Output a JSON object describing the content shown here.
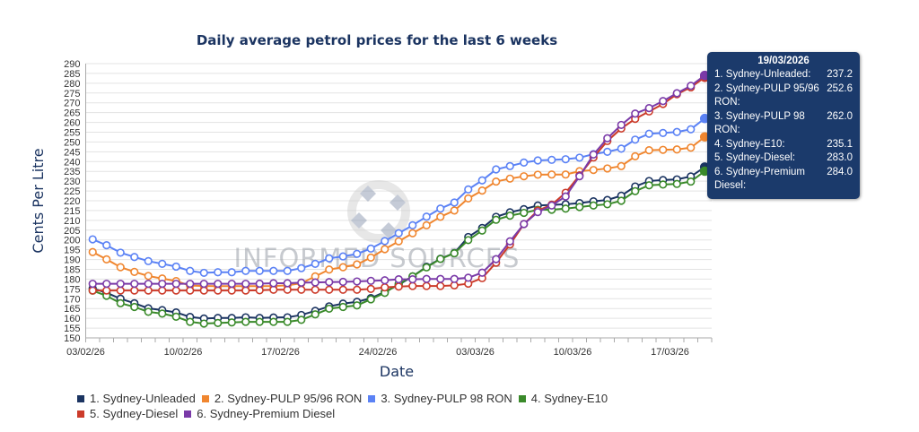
{
  "chart_data": {
    "type": "line",
    "title": "Daily average petrol prices for the last 6 weeks",
    "xlabel": "Date",
    "ylabel": "Cents Per Litre",
    "ylim": [
      150,
      290
    ],
    "ytick_step": 5,
    "x_start": "03/02/26",
    "x_tick_labels": [
      "03/02/26",
      "10/02/26",
      "17/02/26",
      "24/02/26",
      "03/03/26",
      "10/03/26",
      "17/03/26"
    ],
    "grid": true,
    "legend_position": "bottom",
    "series": [
      {
        "name": "1. Sydney-Unleaded",
        "color": "#1b3461",
        "values": [
          175.3,
          173,
          170,
          167.7,
          165.1,
          164.2,
          163,
          160.7,
          159.9,
          160.2,
          160.2,
          160.5,
          160.2,
          160.4,
          160.5,
          161.7,
          163.8,
          166.1,
          167.5,
          168.4,
          170.3,
          173.5,
          177.1,
          181.4,
          186.3,
          190.4,
          193.3,
          201.5,
          206.1,
          211.8,
          214.1,
          215.7,
          217.6,
          217.9,
          218.2,
          218.8,
          219.7,
          220.4,
          222.6,
          227.3,
          230.1,
          230.6,
          230.9,
          232.4,
          237.2
        ]
      },
      {
        "name": "2. Sydney-PULP 95/96 RON",
        "color": "#f0862f",
        "values": [
          193.8,
          190.1,
          186.1,
          183.7,
          181.6,
          180.3,
          179,
          176.7,
          176.5,
          176.4,
          176.4,
          176.4,
          176.4,
          176.5,
          176.8,
          177.9,
          181.4,
          184.9,
          186.1,
          187.5,
          191,
          195.3,
          199.3,
          203.4,
          207.5,
          211.8,
          215,
          221.2,
          225.2,
          229.8,
          231.3,
          232.5,
          233.3,
          233.4,
          233.4,
          235.1,
          235.7,
          236.5,
          237.7,
          242.7,
          245.8,
          246,
          246.2,
          247.1,
          252.6
        ]
      },
      {
        "name": "3. Sydney-PULP 98 RON",
        "color": "#5b82f5",
        "values": [
          200.3,
          197.3,
          193.5,
          191.3,
          189.2,
          187.8,
          186.4,
          184.2,
          183.2,
          183.5,
          183.5,
          184.2,
          184.2,
          184.2,
          184.2,
          185.6,
          187.8,
          190.6,
          191.6,
          192.9,
          195.6,
          199.4,
          203.4,
          207.5,
          211.9,
          216,
          219.1,
          225.8,
          230.4,
          236,
          237.7,
          239.5,
          240.6,
          240.9,
          241.2,
          242,
          243.8,
          245,
          246.6,
          251.2,
          254.2,
          254.6,
          255.1,
          256.5,
          262.0
        ]
      },
      {
        "name": "4. Sydney-E10",
        "color": "#3a8a2a",
        "values": [
          174.1,
          171.5,
          167.7,
          165.8,
          163.3,
          162.4,
          160.8,
          158.2,
          157.3,
          157.6,
          157.9,
          158.2,
          158.2,
          158.2,
          158.2,
          159.2,
          162,
          164.9,
          165.8,
          166.6,
          169.7,
          173,
          177.6,
          181.4,
          186,
          190.3,
          193.2,
          199.9,
          204.8,
          210.3,
          212.4,
          213.8,
          215.4,
          215.4,
          216,
          216.8,
          217.6,
          218.2,
          220,
          224.9,
          227.9,
          228.3,
          228.6,
          229.8,
          235.1
        ]
      },
      {
        "name": "5. Sydney-Diesel",
        "color": "#cc3b2a",
        "values": [
          174.2,
          174.2,
          174.2,
          174.2,
          174.2,
          174.2,
          174.2,
          174.2,
          174.2,
          174.2,
          174.2,
          174.2,
          174.3,
          174.6,
          174.6,
          174.6,
          174.6,
          174.6,
          174.6,
          174.6,
          175,
          175.8,
          176.2,
          176.5,
          176.5,
          176.5,
          176.8,
          177.7,
          180.5,
          188.4,
          197.7,
          208.1,
          215,
          218,
          224.1,
          233,
          242.1,
          250.5,
          256.9,
          261.8,
          265.6,
          269.4,
          274.4,
          277.9,
          283.0
        ]
      },
      {
        "name": "6. Sydney-Premium Diesel",
        "color": "#7a3aa8",
        "values": [
          177.6,
          177.6,
          177.6,
          177.6,
          177.6,
          177.6,
          177.6,
          177.6,
          177.6,
          177.6,
          177.6,
          177.6,
          177.7,
          177.9,
          177.9,
          178.2,
          178.3,
          178.5,
          178.6,
          178.8,
          179.1,
          179.4,
          179.9,
          179.9,
          180.1,
          180.1,
          180.1,
          180.7,
          183.3,
          190.2,
          199.3,
          208.1,
          214.2,
          217.6,
          222.2,
          232.5,
          243.6,
          251.9,
          258.7,
          264.5,
          267.3,
          270.9,
          274.9,
          278.7,
          284.0
        ]
      }
    ]
  },
  "tooltip": {
    "date": "19/03/2026",
    "rows": [
      {
        "label": "1. Sydney-Unleaded:",
        "value": "237.2"
      },
      {
        "label": "2. Sydney-PULP 95/96 RON:",
        "value": "252.6"
      },
      {
        "label": "3. Sydney-PULP 98 RON:",
        "value": "262.0"
      },
      {
        "label": "4. Sydney-E10:",
        "value": "235.1"
      },
      {
        "label": "5. Sydney-Diesel:",
        "value": "283.0"
      },
      {
        "label": "6. Sydney-Premium Diesel:",
        "value": "284.0"
      }
    ]
  },
  "watermark": "INFORMED SOURCES"
}
